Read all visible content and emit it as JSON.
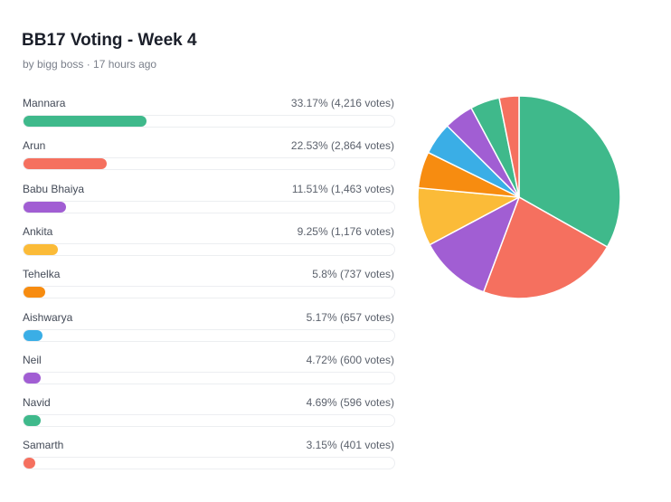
{
  "poll": {
    "title": "BB17 Voting - Week 4",
    "subtitle": "by bigg boss · 17 hours ago"
  },
  "chart_data": {
    "type": "pie",
    "categories": [
      "Mannara",
      "Arun",
      "Babu Bhaiya",
      "Ankita",
      "Tehelka",
      "Aishwarya",
      "Neil",
      "Navid",
      "Samarth"
    ],
    "values": [
      33.17,
      22.53,
      11.51,
      9.25,
      5.8,
      5.17,
      4.72,
      4.69,
      3.15
    ],
    "votes": [
      4216,
      2864,
      1463,
      1176,
      737,
      657,
      600,
      596,
      401
    ],
    "stat_labels": [
      "33.17% (4,216 votes)",
      "22.53% (2,864 votes)",
      "11.51% (1,463 votes)",
      "9.25% (1,176 votes)",
      "5.8% (737 votes)",
      "5.17% (657 votes)",
      "4.72% (600 votes)",
      "4.69% (596 votes)",
      "3.15% (401 votes)"
    ],
    "colors": [
      "#3fb98b",
      "#f5705f",
      "#a15ed3",
      "#fbbb38",
      "#f78c10",
      "#3aaee6",
      "#a15ed3",
      "#3fb98b",
      "#f5705f"
    ],
    "legend": "none",
    "grid": false
  }
}
